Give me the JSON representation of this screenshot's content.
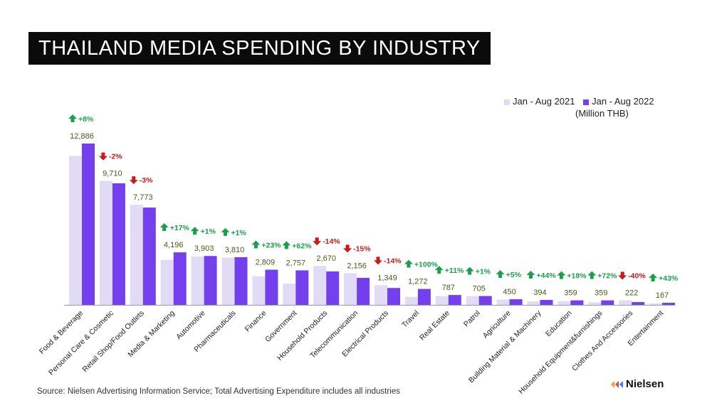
{
  "title": "THAILAND MEDIA SPENDING BY INDUSTRY",
  "unit": "(Million THB)",
  "source": "Source: Nielsen Advertising Information Service; Total Advertising Expenditure includes all industries",
  "logo_text": "Nielsen",
  "colors": {
    "y2021": "#e2dbf6",
    "y2022": "#7440ee",
    "up": "#19a04a",
    "down": "#c71a1a",
    "value_text": "#4a5a18"
  },
  "chart_data": {
    "type": "bar",
    "categories": [
      "Food & Beverage",
      "Personal Care & Cosmetic",
      "Retail Shop/Food Outlets",
      "Media & Marketing",
      "Automotive",
      "Pharmaceuticals",
      "Finance",
      "Government",
      "Household Products",
      "Telecommunication",
      "Electrical Products",
      "Travel",
      "Real Estate",
      "Patrol",
      "Agriculture",
      "Building Material & Machinery",
      "Education",
      "Household Equipment&furnishings",
      "Clothes And Accessories",
      "Entertainment"
    ],
    "series": [
      {
        "name": "Jan - Aug 2021",
        "values": [
          11900,
          9900,
          8000,
          3590,
          3860,
          3770,
          2280,
          1700,
          3110,
          2530,
          1570,
          636,
          700,
          700,
          430,
          274,
          304,
          209,
          370,
          117
        ]
      },
      {
        "name": "Jan - Aug 2022",
        "values": [
          12886,
          9710,
          7773,
          4196,
          3903,
          3810,
          2809,
          2757,
          2670,
          2156,
          1349,
          1272,
          787,
          705,
          450,
          394,
          359,
          359,
          222,
          167
        ]
      }
    ],
    "value_labels": [
      "12,886",
      "9,710",
      "7,773",
      "4,196",
      "3,903",
      "3,810",
      "2,809",
      "2,757",
      "2,670",
      "2,156",
      "1,349",
      "1,272",
      "787",
      "705",
      "450",
      "394",
      "359",
      "359",
      "222",
      "167"
    ],
    "changes": [
      {
        "dir": "up",
        "text": "+8%"
      },
      {
        "dir": "down",
        "text": "-2%"
      },
      {
        "dir": "down",
        "text": "-3%"
      },
      {
        "dir": "up",
        "text": "+17%"
      },
      {
        "dir": "up",
        "text": "+1%"
      },
      {
        "dir": "up",
        "text": "+1%"
      },
      {
        "dir": "up",
        "text": "+23%"
      },
      {
        "dir": "up",
        "text": "+62%"
      },
      {
        "dir": "down",
        "text": "-14%"
      },
      {
        "dir": "down",
        "text": "-15%"
      },
      {
        "dir": "down",
        "text": "-14%"
      },
      {
        "dir": "up",
        "text": "+100%"
      },
      {
        "dir": "up",
        "text": "+11%"
      },
      {
        "dir": "up",
        "text": "+1%"
      },
      {
        "dir": "up",
        "text": "+5%"
      },
      {
        "dir": "up",
        "text": "+44%"
      },
      {
        "dir": "up",
        "text": "+18%"
      },
      {
        "dir": "up",
        "text": "+72%"
      },
      {
        "dir": "down",
        "text": "-40%"
      },
      {
        "dir": "up",
        "text": "+43%"
      }
    ],
    "ylim": [
      0,
      13500
    ],
    "grid": false,
    "legend_position": "top-right"
  }
}
